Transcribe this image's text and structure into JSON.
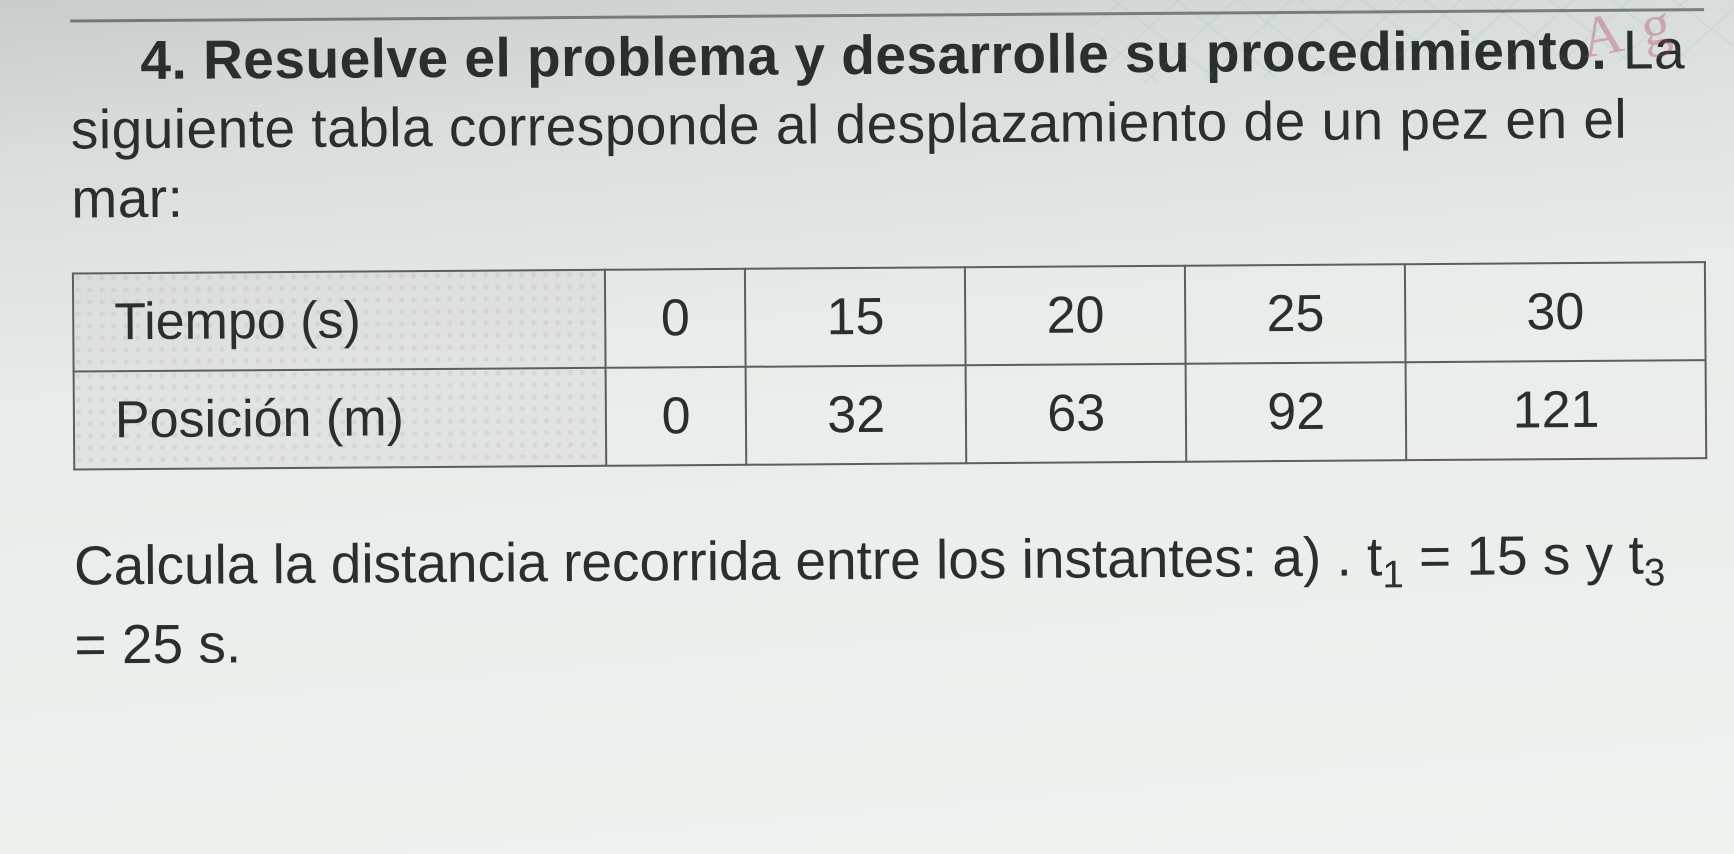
{
  "problem": {
    "number": "4.",
    "title_bold": "Resuelve el problema y desarrolle su procedimiento.",
    "intro": "La siguiente tabla corresponde al desplazamiento de un pez en el mar:"
  },
  "table": {
    "type": "table",
    "row_headers": [
      "Tiempo (s)",
      "Posición (m)"
    ],
    "columns_count": 5,
    "rows": [
      [
        "0",
        "15",
        "20",
        "25",
        "30"
      ],
      [
        "0",
        "32",
        "63",
        "92",
        "121"
      ]
    ],
    "header_bg_color": "#cfd2d0",
    "border_color": "#5a5f5d",
    "font_size_pt": 39,
    "cell_align": "center",
    "row_header_align": "left"
  },
  "question": {
    "prefix": "Calcula la distancia recorrida entre los instantes: a) . ",
    "t1_label": "t",
    "t1_sub": "1",
    "t1_eq": " = 15 s y ",
    "t3_label": "t",
    "t3_sub": "3",
    "t3_eq": " = 25 s."
  },
  "styling": {
    "page_bg_gradient": [
      "#c8cccb",
      "#f0f2f0"
    ],
    "text_color": "#2a2e2d",
    "heading_font_size_pt": 41,
    "body_font_size_pt": 41,
    "font_family": "Verdana"
  },
  "decoration": {
    "ink_text": "A g",
    "ink_color": "#b23c5a"
  }
}
